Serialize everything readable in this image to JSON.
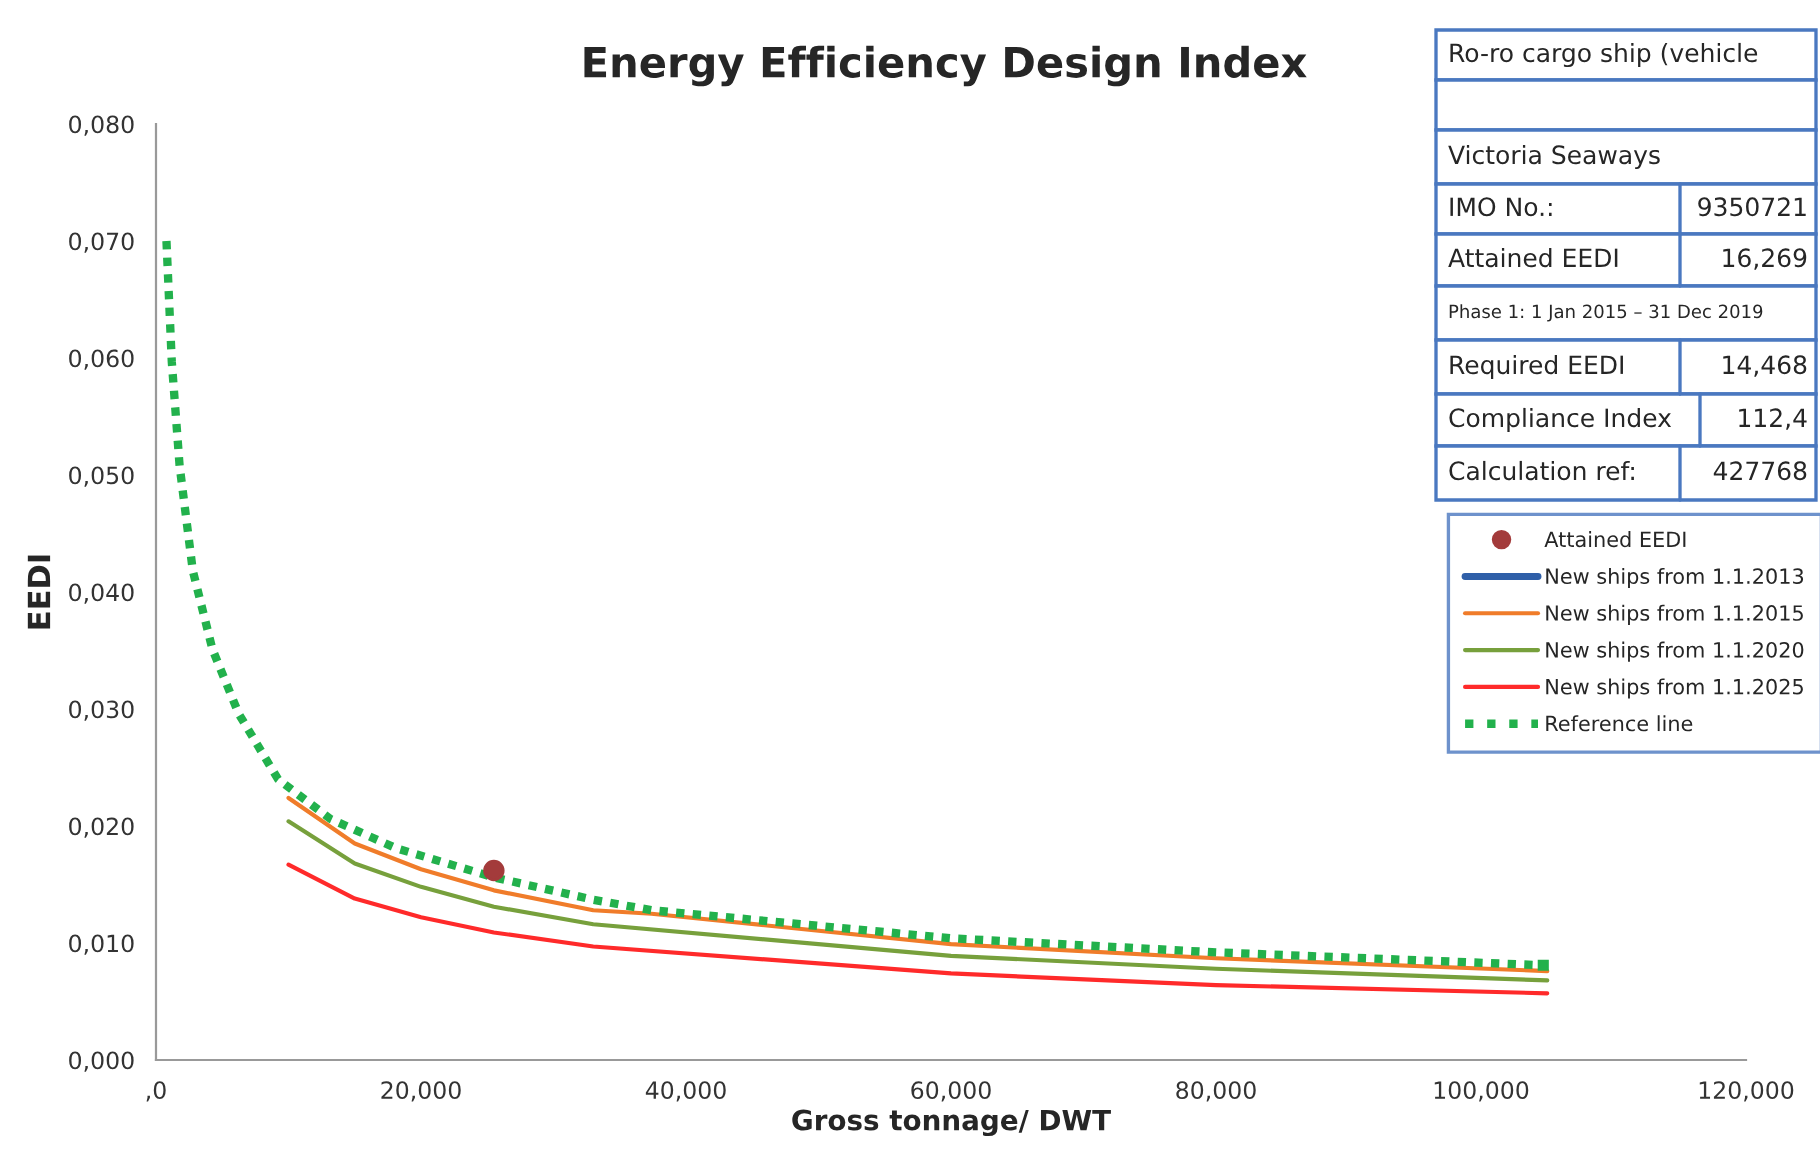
{
  "chart_data": {
    "type": "line",
    "title": "Energy Efficiency Design Index",
    "xlabel": "Gross tonnage/ DWT",
    "ylabel": "EEDI",
    "xlim": [
      0,
      120
    ],
    "ylim": [
      0,
      0.08
    ],
    "xticks": [
      {
        "value": 0,
        "label": ",0"
      },
      {
        "value": 20,
        "label": "20,000"
      },
      {
        "value": 40,
        "label": "40,000"
      },
      {
        "value": 60,
        "label": "60,000"
      },
      {
        "value": 80,
        "label": "80,000"
      },
      {
        "value": 100,
        "label": "100,000"
      },
      {
        "value": 120,
        "label": "120,000"
      }
    ],
    "yticks": [
      {
        "value": 0,
        "label": "0,000"
      },
      {
        "value": 0.01,
        "label": "0,010"
      },
      {
        "value": 0.02,
        "label": "0,020"
      },
      {
        "value": 0.03,
        "label": "0,030"
      },
      {
        "value": 0.04,
        "label": "0,040"
      },
      {
        "value": 0.05,
        "label": "0,050"
      },
      {
        "value": 0.06,
        "label": "0,060"
      },
      {
        "value": 0.07,
        "label": "0,070"
      },
      {
        "value": 0.08,
        "label": "0,080"
      }
    ],
    "grid": false,
    "legend": "right",
    "series": [
      {
        "name": "Attained EEDI",
        "type": "scatter",
        "marker": "circle",
        "color": "#a33b3b",
        "x": [
          25.5
        ],
        "values": [
          0.0162
        ]
      },
      {
        "name": "New ships from 1.1.2013",
        "color": "#2f5fa8"
      },
      {
        "name": "New ships from 1.1.2015",
        "color": "#f07c2a",
        "x": [
          10,
          15,
          20,
          25.5,
          33,
          37.4,
          60,
          80,
          105
        ],
        "values": [
          0.0224,
          0.0185,
          0.0163,
          0.0145,
          0.0128,
          0.0125,
          0.0099,
          0.0087,
          0.0076
        ]
      },
      {
        "name": "New ships from 1.1.2020",
        "color": "#77a03c",
        "x": [
          10,
          15,
          20,
          25.5,
          33,
          60,
          80,
          105
        ],
        "values": [
          0.0204,
          0.0168,
          0.0148,
          0.0131,
          0.0116,
          0.0089,
          0.0078,
          0.0068
        ]
      },
      {
        "name": "New ships from 1.1.2025",
        "color": "#ff2a2a",
        "x": [
          10,
          15,
          20,
          25.5,
          33,
          60,
          80,
          105
        ],
        "values": [
          0.0167,
          0.0138,
          0.0122,
          0.0109,
          0.0097,
          0.0074,
          0.0064,
          0.0057
        ]
      },
      {
        "name": "Reference line",
        "color": "#22b14c",
        "line_style": "dotted",
        "x": [
          0.79,
          1.19,
          1.78,
          2.78,
          4.26,
          6.24,
          9.21,
          13.17,
          18.12,
          25.54,
          33,
          37.4,
          60,
          80,
          104.7
        ],
        "values": [
          0.07,
          0.0597,
          0.0508,
          0.0418,
          0.0351,
          0.0296,
          0.024,
          0.0206,
          0.0181,
          0.0156,
          0.0137,
          0.0128,
          0.0104,
          0.0092,
          0.0081
        ]
      }
    ],
    "annotations": [
      "Ro-ro cargo ship (vehicle",
      "Victoria Seaways",
      "IMO No.:",
      "9350721",
      "Attained EEDI",
      "16,269",
      "Phase 1: 1 Jan 2015 – 31 Dec 2019",
      "Required EEDI",
      "14,468",
      "Compliance Index",
      "112,4",
      "Calculation ref:",
      "427768"
    ]
  }
}
